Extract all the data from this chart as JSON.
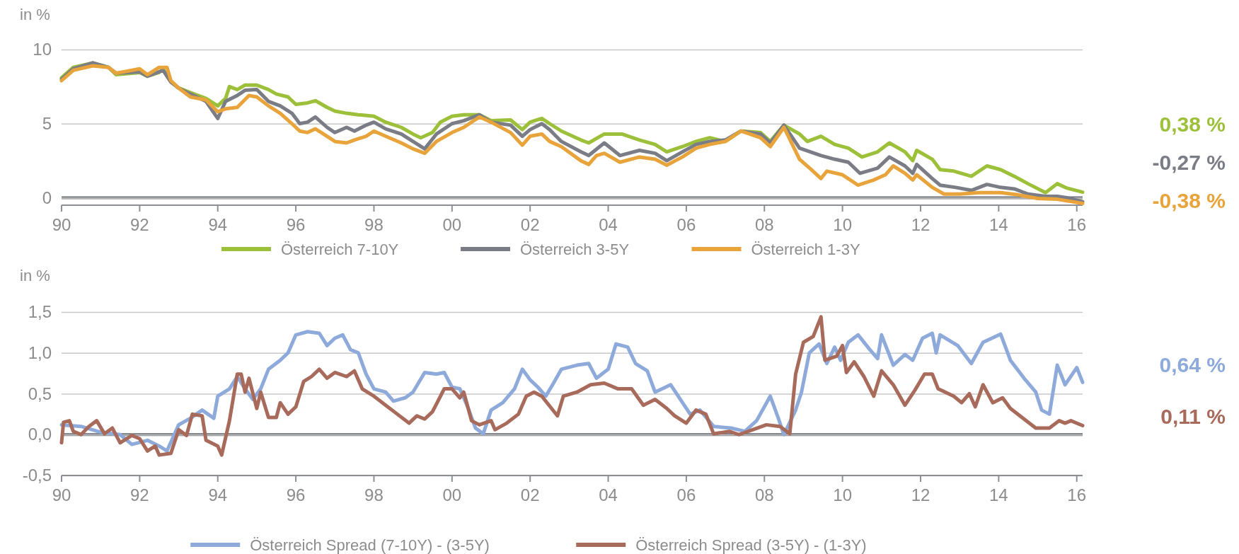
{
  "chart_data": [
    {
      "type": "line",
      "ylabel": "in %",
      "xlim": [
        1990,
        2016.15
      ],
      "xticks": [
        {
          "value": 1990,
          "label": "90"
        },
        {
          "value": 1992,
          "label": "92"
        },
        {
          "value": 1994,
          "label": "94"
        },
        {
          "value": 1996,
          "label": "96"
        },
        {
          "value": 1998,
          "label": "98"
        },
        {
          "value": 2000,
          "label": "00"
        },
        {
          "value": 2002,
          "label": "02"
        },
        {
          "value": 2004,
          "label": "04"
        },
        {
          "value": 2006,
          "label": "06"
        },
        {
          "value": 2008,
          "label": "08"
        },
        {
          "value": 2010,
          "label": "10"
        },
        {
          "value": 2012,
          "label": "12"
        },
        {
          "value": 2014,
          "label": "14"
        },
        {
          "value": 2016,
          "label": "16"
        }
      ],
      "ylim": [
        -0.5,
        10
      ],
      "yticks": [
        0,
        5,
        10
      ],
      "grid": "y",
      "legend": "bottom",
      "line_style": "solid",
      "ref_lines": [
        {
          "axis": "y",
          "value": 0,
          "color": "#6f737a"
        }
      ],
      "annotations": [
        "0,38 %",
        "-0,27 %",
        "-0,38 %"
      ],
      "series": [
        {
          "name": "Österreich 7-10Y",
          "color": "#9dc03a",
          "x": [
            1990.0,
            1990.3,
            1990.8,
            1991.2,
            1991.4,
            1992.0,
            1992.2,
            1992.5,
            1992.6,
            1992.8,
            1993.0,
            1993.3,
            1993.7,
            1994.0,
            1994.2,
            1994.3,
            1994.5,
            1994.7,
            1995.0,
            1995.3,
            1995.5,
            1995.8,
            1996.0,
            1996.3,
            1996.5,
            1996.8,
            1997.0,
            1997.3,
            1997.6,
            1998.0,
            1998.3,
            1998.7,
            1999.0,
            1999.2,
            1999.5,
            1999.7,
            2000.0,
            2000.3,
            2000.7,
            2001.0,
            2001.5,
            2001.8,
            2002.0,
            2002.3,
            2002.5,
            2002.8,
            2003.3,
            2003.5,
            2003.9,
            2004.35,
            2004.8,
            2005.2,
            2005.5,
            2005.9,
            2006.25,
            2006.6,
            2007.0,
            2007.4,
            2007.9,
            2008.15,
            2008.5,
            2008.9,
            2009.1,
            2009.45,
            2009.8,
            2010.15,
            2010.5,
            2010.9,
            2011.2,
            2011.6,
            2011.8,
            2011.9,
            2012.3,
            2012.5,
            2012.85,
            2013.3,
            2013.7,
            2014.05,
            2014.4,
            2014.75,
            2015.2,
            2015.5,
            2015.75,
            2016.15
          ],
          "values": [
            8.1,
            8.8,
            9.1,
            8.8,
            8.3,
            8.45,
            8.2,
            8.45,
            8.7,
            7.85,
            7.4,
            7.1,
            6.7,
            6.2,
            6.7,
            7.5,
            7.3,
            7.6,
            7.6,
            7.3,
            7.0,
            6.8,
            6.3,
            6.4,
            6.55,
            6.1,
            5.85,
            5.7,
            5.6,
            5.5,
            5.1,
            4.75,
            4.3,
            4.05,
            4.4,
            5.1,
            5.5,
            5.6,
            5.6,
            5.2,
            5.25,
            4.6,
            5.1,
            5.35,
            5.0,
            4.5,
            3.9,
            3.7,
            4.3,
            4.3,
            3.9,
            3.6,
            3.1,
            3.45,
            3.8,
            4.05,
            3.8,
            4.5,
            4.4,
            3.8,
            4.9,
            4.3,
            3.8,
            4.15,
            3.6,
            3.35,
            2.75,
            3.1,
            3.7,
            3.1,
            2.5,
            3.2,
            2.6,
            1.9,
            1.8,
            1.45,
            2.15,
            1.9,
            1.45,
            0.95,
            0.35,
            0.95,
            0.65,
            0.38
          ]
        },
        {
          "name": "Österreich 3-5Y",
          "color": "#7a7d85",
          "x": [
            1990.0,
            1990.3,
            1990.8,
            1991.2,
            1991.4,
            1992.0,
            1992.2,
            1992.6,
            1992.8,
            1993.0,
            1993.3,
            1993.7,
            1994.0,
            1994.2,
            1994.5,
            1994.7,
            1995.0,
            1995.3,
            1995.6,
            1995.9,
            1996.1,
            1996.3,
            1996.5,
            1996.8,
            1997.0,
            1997.3,
            1997.5,
            1997.8,
            1998.0,
            1998.3,
            1998.7,
            1999.0,
            1999.3,
            1999.6,
            2000.0,
            2000.3,
            2000.7,
            2001.0,
            2001.5,
            2001.8,
            2002.0,
            2002.3,
            2002.5,
            2002.8,
            2003.3,
            2003.5,
            2003.9,
            2004.3,
            2004.8,
            2005.2,
            2005.5,
            2005.9,
            2006.25,
            2006.6,
            2007.0,
            2007.4,
            2007.9,
            2008.15,
            2008.5,
            2008.9,
            2009.45,
            2009.8,
            2010.15,
            2010.45,
            2010.9,
            2011.2,
            2011.6,
            2011.8,
            2011.9,
            2012.3,
            2012.5,
            2012.9,
            2013.3,
            2013.7,
            2014.05,
            2014.4,
            2014.75,
            2015.2,
            2015.5,
            2015.75,
            2016.15
          ],
          "values": [
            8.0,
            8.7,
            9.1,
            8.8,
            8.4,
            8.5,
            8.2,
            8.6,
            7.8,
            7.4,
            7.0,
            6.5,
            5.35,
            6.5,
            6.9,
            7.25,
            7.3,
            6.5,
            6.2,
            5.7,
            5.0,
            5.1,
            5.45,
            4.75,
            4.4,
            4.75,
            4.5,
            4.9,
            5.1,
            4.65,
            4.3,
            3.8,
            3.3,
            4.3,
            5.0,
            5.2,
            5.6,
            5.1,
            4.9,
            4.15,
            4.6,
            5.0,
            4.6,
            3.8,
            3.1,
            2.85,
            3.7,
            2.85,
            3.2,
            3.0,
            2.5,
            3.1,
            3.6,
            3.8,
            3.9,
            4.5,
            4.3,
            3.7,
            4.9,
            3.35,
            2.85,
            2.6,
            2.4,
            1.65,
            2.0,
            2.75,
            2.15,
            1.65,
            2.25,
            1.3,
            0.85,
            0.7,
            0.5,
            0.9,
            0.7,
            0.6,
            0.25,
            0.1,
            0.1,
            0.0,
            -0.27
          ]
        },
        {
          "name": "Österreich 1-3Y",
          "color": "#e8a43a",
          "x": [
            1990.0,
            1990.3,
            1990.8,
            1991.2,
            1991.4,
            1992.0,
            1992.2,
            1992.5,
            1992.7,
            1992.8,
            1993.0,
            1993.3,
            1993.7,
            1994.0,
            1994.2,
            1994.5,
            1994.8,
            1995.0,
            1995.3,
            1995.6,
            1995.9,
            1996.1,
            1996.3,
            1996.5,
            1996.8,
            1997.0,
            1997.3,
            1997.5,
            1997.8,
            1998.0,
            1998.3,
            1998.7,
            1999.0,
            1999.3,
            1999.6,
            2000.0,
            2000.3,
            2000.7,
            2001.0,
            2001.5,
            2001.8,
            2002.0,
            2002.3,
            2002.5,
            2002.8,
            2003.3,
            2003.5,
            2003.7,
            2003.9,
            2004.3,
            2004.8,
            2005.2,
            2005.5,
            2005.9,
            2006.25,
            2006.6,
            2007.0,
            2007.4,
            2007.9,
            2008.15,
            2008.5,
            2008.9,
            2009.2,
            2009.45,
            2009.6,
            2010.0,
            2010.4,
            2010.8,
            2011.1,
            2011.3,
            2011.6,
            2011.8,
            2011.9,
            2012.3,
            2012.6,
            2013.0,
            2013.5,
            2014.05,
            2014.5,
            2015.0,
            2015.5,
            2016.15
          ],
          "values": [
            7.9,
            8.6,
            8.9,
            8.8,
            8.4,
            8.7,
            8.3,
            8.8,
            8.8,
            7.9,
            7.4,
            6.8,
            6.6,
            5.8,
            6.0,
            6.1,
            6.9,
            6.8,
            6.2,
            5.7,
            5.0,
            4.5,
            4.4,
            4.65,
            4.15,
            3.8,
            3.7,
            3.9,
            4.15,
            4.5,
            4.15,
            3.7,
            3.3,
            3.0,
            3.8,
            4.4,
            4.75,
            5.45,
            5.1,
            4.4,
            3.55,
            4.15,
            4.3,
            3.8,
            3.45,
            2.5,
            2.25,
            2.85,
            3.0,
            2.4,
            2.75,
            2.6,
            2.2,
            2.75,
            3.35,
            3.6,
            3.8,
            4.5,
            4.05,
            3.45,
            4.75,
            2.6,
            1.9,
            1.3,
            1.8,
            1.55,
            0.85,
            1.2,
            1.55,
            2.15,
            1.65,
            1.2,
            1.55,
            0.7,
            0.25,
            0.25,
            0.35,
            0.35,
            0.2,
            -0.05,
            -0.1,
            -0.38
          ]
        }
      ]
    },
    {
      "type": "line",
      "ylabel": "in %",
      "xlim": [
        1990,
        2016.15
      ],
      "xticks": [
        {
          "value": 1990,
          "label": "90"
        },
        {
          "value": 1992,
          "label": "92"
        },
        {
          "value": 1994,
          "label": "94"
        },
        {
          "value": 1996,
          "label": "96"
        },
        {
          "value": 1998,
          "label": "98"
        },
        {
          "value": 2000,
          "label": "00"
        },
        {
          "value": 2002,
          "label": "02"
        },
        {
          "value": 2004,
          "label": "04"
        },
        {
          "value": 2006,
          "label": "06"
        },
        {
          "value": 2008,
          "label": "08"
        },
        {
          "value": 2010,
          "label": "10"
        },
        {
          "value": 2012,
          "label": "12"
        },
        {
          "value": 2014,
          "label": "14"
        },
        {
          "value": 2016,
          "label": "16"
        }
      ],
      "ylim": [
        -0.5,
        1.5
      ],
      "yticks": [
        {
          "value": -0.5,
          "label": "-0,5"
        },
        {
          "value": 0,
          "label": "0,0"
        },
        {
          "value": 0.5,
          "label": "0,5"
        },
        {
          "value": 1,
          "label": "1,0"
        },
        {
          "value": 1.5,
          "label": "1,5"
        }
      ],
      "grid": "y",
      "legend": "bottom",
      "line_style": "solid",
      "ref_lines": [
        {
          "axis": "y",
          "value": 0,
          "color": "#6f737a"
        }
      ],
      "annotations": [
        "0,64 %",
        "0,11 %"
      ],
      "series": [
        {
          "name": "Österreich Spread (7-10Y) - (3-5Y)",
          "color": "#8eaadb",
          "x": [
            1990.0,
            1990.5,
            1991.0,
            1991.5,
            1991.8,
            1992.2,
            1992.5,
            1992.7,
            1993.0,
            1993.3,
            1993.6,
            1993.9,
            1994.0,
            1994.3,
            1994.5,
            1994.7,
            1994.9,
            1995.1,
            1995.3,
            1995.6,
            1995.8,
            1996.0,
            1996.3,
            1996.6,
            1996.8,
            1997.0,
            1997.2,
            1997.4,
            1997.6,
            1997.8,
            1998.0,
            1998.3,
            1998.5,
            1998.8,
            1999.0,
            1999.3,
            1999.6,
            1999.8,
            2000.0,
            2000.2,
            2000.4,
            2000.6,
            2000.8,
            2001.0,
            2001.3,
            2001.6,
            2001.8,
            2002.0,
            2002.2,
            2002.4,
            2002.6,
            2002.8,
            2003.2,
            2003.5,
            2003.7,
            2004.0,
            2004.2,
            2004.5,
            2004.7,
            2005.0,
            2005.2,
            2005.6,
            2005.85,
            2006.1,
            2006.35,
            2006.7,
            2007.15,
            2007.5,
            2007.8,
            2008.15,
            2008.35,
            2008.5,
            2008.8,
            2008.95,
            2009.15,
            2009.4,
            2009.6,
            2009.8,
            2009.95,
            2010.15,
            2010.4,
            2010.7,
            2010.9,
            2011.0,
            2011.3,
            2011.6,
            2011.8,
            2012.05,
            2012.3,
            2012.4,
            2012.5,
            2012.95,
            2013.3,
            2013.6,
            2014.05,
            2014.3,
            2014.65,
            2014.95,
            2015.1,
            2015.3,
            2015.5,
            2015.7,
            2016.0,
            2016.15
          ],
          "values": [
            0.12,
            0.1,
            0.03,
            0.0,
            -0.12,
            -0.07,
            -0.14,
            -0.2,
            0.12,
            0.2,
            0.3,
            0.2,
            0.47,
            0.56,
            0.71,
            0.56,
            0.43,
            0.56,
            0.8,
            0.91,
            1.0,
            1.22,
            1.26,
            1.24,
            1.09,
            1.18,
            1.22,
            1.04,
            1.0,
            0.74,
            0.56,
            0.52,
            0.41,
            0.45,
            0.52,
            0.76,
            0.74,
            0.76,
            0.58,
            0.56,
            0.34,
            0.08,
            0.01,
            0.3,
            0.39,
            0.56,
            0.8,
            0.67,
            0.58,
            0.47,
            0.63,
            0.8,
            0.85,
            0.87,
            0.69,
            0.8,
            1.11,
            1.07,
            0.87,
            0.78,
            0.52,
            0.61,
            0.43,
            0.25,
            0.3,
            0.1,
            0.08,
            0.04,
            0.17,
            0.47,
            0.21,
            0.0,
            0.3,
            0.52,
            1.0,
            1.11,
            0.87,
            1.07,
            0.91,
            1.13,
            1.22,
            1.04,
            0.93,
            1.22,
            0.85,
            0.98,
            0.91,
            1.18,
            1.24,
            1.0,
            1.22,
            1.09,
            0.87,
            1.13,
            1.23,
            0.91,
            0.69,
            0.52,
            0.3,
            0.25,
            0.85,
            0.61,
            0.82,
            0.64
          ]
        },
        {
          "name": "Österreich Spread (3-5Y) - (1-3Y)",
          "color": "#a86a5a",
          "x": [
            1990.0,
            1990.05,
            1990.2,
            1990.3,
            1990.5,
            1990.7,
            1990.9,
            1991.1,
            1991.3,
            1991.5,
            1991.8,
            1992.0,
            1992.2,
            1992.4,
            1992.5,
            1992.8,
            1993.0,
            1993.2,
            1993.35,
            1993.6,
            1993.7,
            1994.0,
            1994.1,
            1994.3,
            1994.5,
            1994.6,
            1994.7,
            1994.8,
            1995.0,
            1995.1,
            1995.3,
            1995.5,
            1995.6,
            1995.8,
            1996.0,
            1996.2,
            1996.4,
            1996.6,
            1996.8,
            1997.0,
            1997.3,
            1997.5,
            1997.7,
            1998.0,
            1998.3,
            1998.6,
            1998.9,
            1999.1,
            1999.3,
            1999.5,
            1999.8,
            2000.0,
            2000.2,
            2000.3,
            2000.5,
            2000.7,
            2001.0,
            2001.1,
            2001.4,
            2001.7,
            2001.9,
            2002.1,
            2002.3,
            2002.7,
            2002.85,
            2003.2,
            2003.55,
            2003.9,
            2004.25,
            2004.6,
            2004.9,
            2005.2,
            2005.5,
            2005.7,
            2006.0,
            2006.25,
            2006.5,
            2006.7,
            2007.1,
            2007.35,
            2007.7,
            2008.05,
            2008.4,
            2008.65,
            2008.8,
            2009.0,
            2009.25,
            2009.45,
            2009.55,
            2009.85,
            2010.0,
            2010.1,
            2010.3,
            2010.55,
            2010.8,
            2011.0,
            2011.3,
            2011.6,
            2011.85,
            2012.1,
            2012.3,
            2012.45,
            2012.85,
            2013.05,
            2013.25,
            2013.4,
            2013.6,
            2013.85,
            2014.1,
            2014.3,
            2014.65,
            2014.95,
            2015.3,
            2015.55,
            2015.7,
            2015.85,
            2016.15
          ],
          "values": [
            -0.1,
            0.15,
            0.17,
            0.04,
            0.0,
            0.1,
            0.17,
            0.01,
            0.08,
            -0.1,
            -0.01,
            -0.05,
            -0.2,
            -0.14,
            -0.25,
            -0.23,
            0.06,
            -0.01,
            0.25,
            0.23,
            -0.07,
            -0.14,
            -0.25,
            0.17,
            0.74,
            0.74,
            0.52,
            0.69,
            0.32,
            0.52,
            0.21,
            0.21,
            0.39,
            0.25,
            0.34,
            0.65,
            0.71,
            0.8,
            0.69,
            0.76,
            0.71,
            0.78,
            0.56,
            0.47,
            0.36,
            0.25,
            0.14,
            0.23,
            0.19,
            0.28,
            0.56,
            0.56,
            0.45,
            0.52,
            0.17,
            0.12,
            0.17,
            0.06,
            0.14,
            0.25,
            0.47,
            0.52,
            0.47,
            0.23,
            0.47,
            0.52,
            0.61,
            0.63,
            0.56,
            0.56,
            0.36,
            0.43,
            0.32,
            0.23,
            0.14,
            0.3,
            0.25,
            0.01,
            0.04,
            0.0,
            0.06,
            0.12,
            0.1,
            0.01,
            0.74,
            1.13,
            1.2,
            1.44,
            0.91,
            0.96,
            1.09,
            0.76,
            0.89,
            0.71,
            0.47,
            0.78,
            0.61,
            0.36,
            0.54,
            0.74,
            0.74,
            0.56,
            0.47,
            0.39,
            0.5,
            0.34,
            0.61,
            0.39,
            0.45,
            0.32,
            0.19,
            0.08,
            0.08,
            0.17,
            0.14,
            0.17,
            0.11
          ]
        }
      ]
    }
  ]
}
